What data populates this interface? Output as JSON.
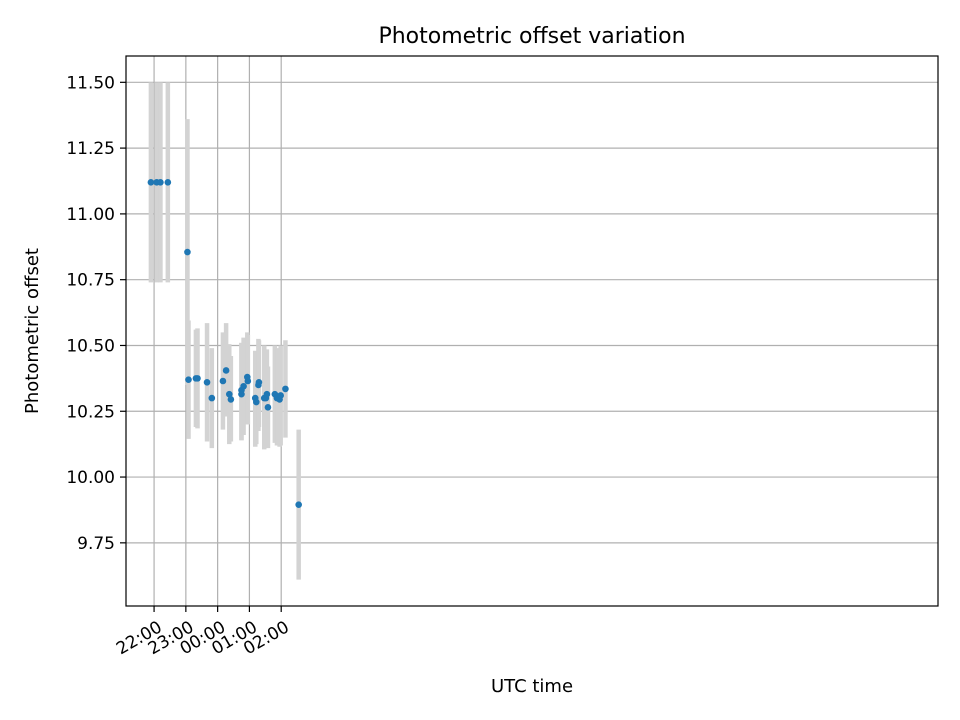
{
  "chart_data": {
    "type": "scatter",
    "title": "Photometric offset variation",
    "xlabel": "UTC time",
    "ylabel": "Photometric offset",
    "x_axis": {
      "type": "time",
      "range_minutes": [
        -53,
        1480
      ],
      "ticks": [
        {
          "minutes": 0,
          "label": "22:00"
        },
        {
          "minutes": 60,
          "label": "23:00"
        },
        {
          "minutes": 120,
          "label": "00:00"
        },
        {
          "minutes": 180,
          "label": "01:00"
        },
        {
          "minutes": 240,
          "label": "02:00"
        }
      ]
    },
    "y_axis": {
      "range": [
        9.51,
        11.6
      ],
      "ticks": [
        {
          "value": 9.75,
          "label": "9.75"
        },
        {
          "value": 10.0,
          "label": "10.00"
        },
        {
          "value": 10.25,
          "label": "10.25"
        },
        {
          "value": 10.5,
          "label": "10.50"
        },
        {
          "value": 10.75,
          "label": "10.75"
        },
        {
          "value": 11.0,
          "label": "11.00"
        },
        {
          "value": 11.25,
          "label": "11.25"
        },
        {
          "value": 11.5,
          "label": "11.50"
        }
      ]
    },
    "grid": true,
    "colors": {
      "point": "#1f77b4",
      "errorbar": "#d3d3d3",
      "grid": "#b0b0b0",
      "axes": "#000000"
    },
    "series": [
      {
        "points": [
          {
            "time": "21:54",
            "y": 11.12,
            "ylow": 10.74,
            "yhigh": 11.5
          },
          {
            "time": "22:05",
            "y": 11.12,
            "ylow": 10.74,
            "yhigh": 11.5
          },
          {
            "time": "22:12",
            "y": 11.12,
            "ylow": 10.74,
            "yhigh": 11.5
          },
          {
            "time": "22:26",
            "y": 11.12,
            "ylow": 10.74,
            "yhigh": 11.5
          },
          {
            "time": "23:03",
            "y": 10.855,
            "ylow": 10.35,
            "yhigh": 11.36
          },
          {
            "time": "23:05",
            "y": 10.37,
            "ylow": 10.145,
            "yhigh": 10.595
          },
          {
            "time": "23:19",
            "y": 10.375,
            "ylow": 10.19,
            "yhigh": 10.56
          },
          {
            "time": "23:22",
            "y": 10.375,
            "ylow": 10.185,
            "yhigh": 10.565
          },
          {
            "time": "23:40",
            "y": 10.36,
            "ylow": 10.135,
            "yhigh": 10.585
          },
          {
            "time": "23:49",
            "y": 10.3,
            "ylow": 10.11,
            "yhigh": 10.49
          },
          {
            "time": "00:10",
            "y": 10.365,
            "ylow": 10.18,
            "yhigh": 10.55
          },
          {
            "time": "00:16",
            "y": 10.405,
            "ylow": 10.23,
            "yhigh": 10.585
          },
          {
            "time": "00:22",
            "y": 10.315,
            "ylow": 10.125,
            "yhigh": 10.505
          },
          {
            "time": "00:25",
            "y": 10.295,
            "ylow": 10.135,
            "yhigh": 10.46
          },
          {
            "time": "00:45",
            "y": 10.33,
            "ylow": 10.14,
            "yhigh": 10.51
          },
          {
            "time": "00:45",
            "y": 10.315,
            "ylow": 10.14,
            "yhigh": 10.51
          },
          {
            "time": "00:49",
            "y": 10.345,
            "ylow": 10.16,
            "yhigh": 10.53
          },
          {
            "time": "00:56",
            "y": 10.38,
            "ylow": 10.2,
            "yhigh": 10.55
          },
          {
            "time": "00:57",
            "y": 10.365,
            "ylow": 10.2,
            "yhigh": 10.54
          },
          {
            "time": "01:11",
            "y": 10.3,
            "ylow": 10.115,
            "yhigh": 10.48
          },
          {
            "time": "01:13",
            "y": 10.285,
            "ylow": 10.125,
            "yhigh": 10.45
          },
          {
            "time": "01:17",
            "y": 10.35,
            "ylow": 10.175,
            "yhigh": 10.525
          },
          {
            "time": "01:18",
            "y": 10.36,
            "ylow": 10.19,
            "yhigh": 10.52
          },
          {
            "time": "01:28",
            "y": 10.3,
            "ylow": 10.105,
            "yhigh": 10.5
          },
          {
            "time": "01:31",
            "y": 10.3,
            "ylow": 10.13,
            "yhigh": 10.47
          },
          {
            "time": "01:33",
            "y": 10.315,
            "ylow": 10.145,
            "yhigh": 10.485
          },
          {
            "time": "01:35",
            "y": 10.265,
            "ylow": 10.11,
            "yhigh": 10.42
          },
          {
            "time": "01:48",
            "y": 10.315,
            "ylow": 10.13,
            "yhigh": 10.5
          },
          {
            "time": "01:52",
            "y": 10.3,
            "ylow": 10.12,
            "yhigh": 10.485
          },
          {
            "time": "01:54",
            "y": 10.305,
            "ylow": 10.125,
            "yhigh": 10.49
          },
          {
            "time": "01:57",
            "y": 10.295,
            "ylow": 10.115,
            "yhigh": 10.475
          },
          {
            "time": "01:59",
            "y": 10.31,
            "ylow": 10.12,
            "yhigh": 10.5
          },
          {
            "time": "02:08",
            "y": 10.335,
            "ylow": 10.15,
            "yhigh": 10.52
          },
          {
            "time": "02:33",
            "y": 9.895,
            "ylow": 9.61,
            "yhigh": 10.18
          }
        ]
      }
    ]
  }
}
